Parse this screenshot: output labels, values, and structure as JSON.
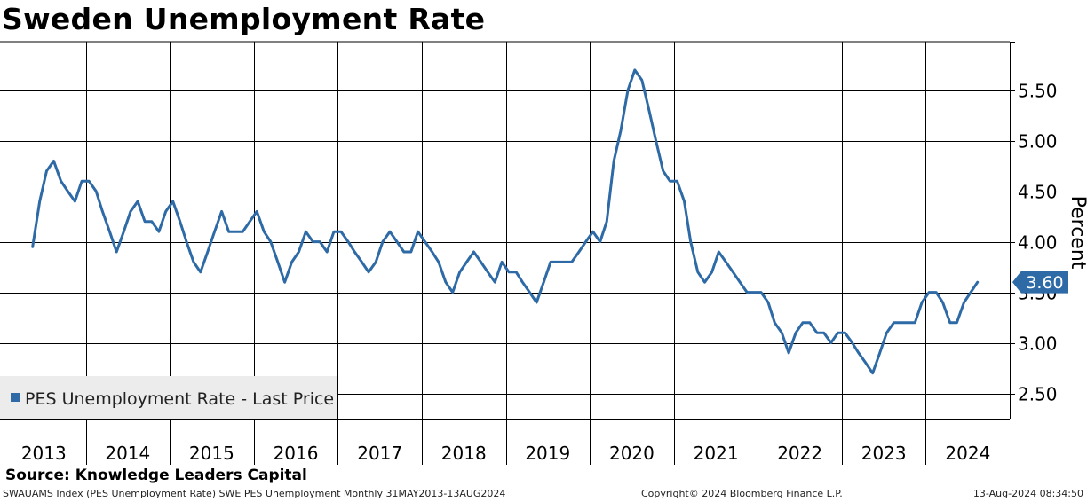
{
  "colors": {
    "series": "#2e6aa6",
    "grid": "#000000",
    "legend_bg": "#ececec",
    "badge_bg": "#2e6aa6",
    "badge_text": "#ffffff"
  },
  "chart_data": {
    "type": "line",
    "title": "Sweden Unemployment Rate",
    "ylabel": "Percent",
    "xlabel": "",
    "ylim": [
      2.25,
      5.98
    ],
    "x_range": [
      "2013-01-01",
      "2024-12-31"
    ],
    "grid": true,
    "legend_position": "bottom-left",
    "y_ticks": [
      "2.50",
      "3.00",
      "3.50",
      "4.00",
      "4.50",
      "5.00",
      "5.50"
    ],
    "x_ticks": [
      "2013",
      "2014",
      "2015",
      "2016",
      "2017",
      "2018",
      "2019",
      "2020",
      "2021",
      "2022",
      "2023",
      "2024"
    ],
    "series": [
      {
        "name": "PES Unemployment Rate - Last Price",
        "start": "2013-05",
        "frequency": "monthly",
        "values": [
          3.95,
          4.4,
          4.7,
          4.8,
          4.6,
          4.5,
          4.4,
          4.6,
          4.6,
          4.5,
          4.3,
          4.1,
          3.9,
          4.1,
          4.3,
          4.4,
          4.2,
          4.2,
          4.1,
          4.3,
          4.4,
          4.2,
          4.0,
          3.8,
          3.7,
          3.9,
          4.1,
          4.3,
          4.1,
          4.1,
          4.1,
          4.2,
          4.3,
          4.1,
          4.0,
          3.8,
          3.6,
          3.8,
          3.9,
          4.1,
          4.0,
          4.0,
          3.9,
          4.1,
          4.1,
          4.0,
          3.9,
          3.8,
          3.7,
          3.8,
          4.0,
          4.1,
          4.0,
          3.9,
          3.9,
          4.1,
          4.0,
          3.9,
          3.8,
          3.6,
          3.5,
          3.7,
          3.8,
          3.9,
          3.8,
          3.7,
          3.6,
          3.8,
          3.7,
          3.7,
          3.6,
          3.5,
          3.4,
          3.6,
          3.8,
          3.8,
          3.8,
          3.8,
          3.9,
          4.0,
          4.1,
          4.0,
          4.2,
          4.8,
          5.1,
          5.5,
          5.7,
          5.6,
          5.3,
          5.0,
          4.7,
          4.6,
          4.6,
          4.4,
          4.0,
          3.7,
          3.6,
          3.7,
          3.9,
          3.8,
          3.7,
          3.6,
          3.5,
          3.5,
          3.5,
          3.4,
          3.2,
          3.1,
          2.9,
          3.1,
          3.2,
          3.2,
          3.1,
          3.1,
          3.0,
          3.1,
          3.1,
          3.0,
          2.9,
          2.8,
          2.7,
          2.9,
          3.1,
          3.2,
          3.2,
          3.2,
          3.2,
          3.4,
          3.5,
          3.5,
          3.4,
          3.2,
          3.2,
          3.4,
          3.6
        ]
      }
    ],
    "last_value_label": "3.60"
  },
  "source": "Source: Knowledge Leaders Capital",
  "footer": {
    "index": "SWAUAMS Index (PES Unemployment Rate) SWE PES Unemployment  Monthly 31MAY2013-13AUG2024",
    "copyright": "Copyright© 2024 Bloomberg Finance L.P.",
    "timestamp": "13-Aug-2024 08:34:50"
  }
}
